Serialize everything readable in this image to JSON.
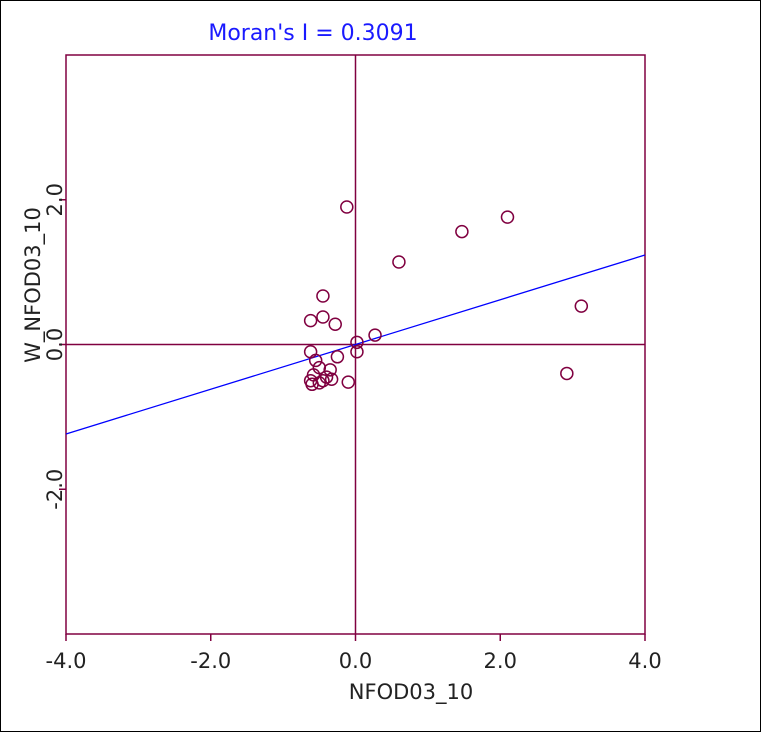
{
  "chart_data": {
    "type": "scatter",
    "title": "Moran's I = 0.3091",
    "xlabel": "NFOD03_10",
    "ylabel": "W_NFOD03_10",
    "xlim": [
      -4.0,
      4.0
    ],
    "ylim": [
      -4.0,
      4.0
    ],
    "x_ticks": [
      -4.0,
      -2.0,
      0.0,
      2.0,
      4.0
    ],
    "x_tick_labels": [
      "-4.0",
      "-2.0",
      "0.0",
      "2.0",
      "4.0"
    ],
    "y_ticks": [
      -2.0,
      0.0,
      2.0
    ],
    "y_tick_labels": [
      "-2.0",
      "0.0",
      "2.0"
    ],
    "grid": false,
    "reference_lines": {
      "x": 0.0,
      "y": 0.0
    },
    "regression_line": {
      "slope": 0.3091,
      "intercept": 0.0
    },
    "colors": {
      "frame": "#800040",
      "points": "#800040",
      "regression": "#0000ff",
      "title": "#1a1aff"
    },
    "points": [
      {
        "x": -0.12,
        "y": 1.9
      },
      {
        "x": 1.47,
        "y": 1.56
      },
      {
        "x": 2.1,
        "y": 1.76
      },
      {
        "x": 0.6,
        "y": 1.14
      },
      {
        "x": 3.12,
        "y": 0.53
      },
      {
        "x": 2.92,
        "y": -0.4
      },
      {
        "x": -0.45,
        "y": 0.67
      },
      {
        "x": -0.62,
        "y": 0.33
      },
      {
        "x": -0.45,
        "y": 0.38
      },
      {
        "x": -0.28,
        "y": 0.28
      },
      {
        "x": 0.27,
        "y": 0.13
      },
      {
        "x": 0.02,
        "y": 0.03
      },
      {
        "x": 0.02,
        "y": -0.1
      },
      {
        "x": -0.62,
        "y": -0.1
      },
      {
        "x": -0.55,
        "y": -0.22
      },
      {
        "x": -0.25,
        "y": -0.17
      },
      {
        "x": -0.5,
        "y": -0.32
      },
      {
        "x": -0.35,
        "y": -0.35
      },
      {
        "x": -0.58,
        "y": -0.42
      },
      {
        "x": -0.4,
        "y": -0.45
      },
      {
        "x": -0.45,
        "y": -0.5
      },
      {
        "x": -0.62,
        "y": -0.5
      },
      {
        "x": -0.33,
        "y": -0.48
      },
      {
        "x": -0.6,
        "y": -0.55
      },
      {
        "x": -0.5,
        "y": -0.53
      },
      {
        "x": -0.1,
        "y": -0.52
      }
    ]
  }
}
